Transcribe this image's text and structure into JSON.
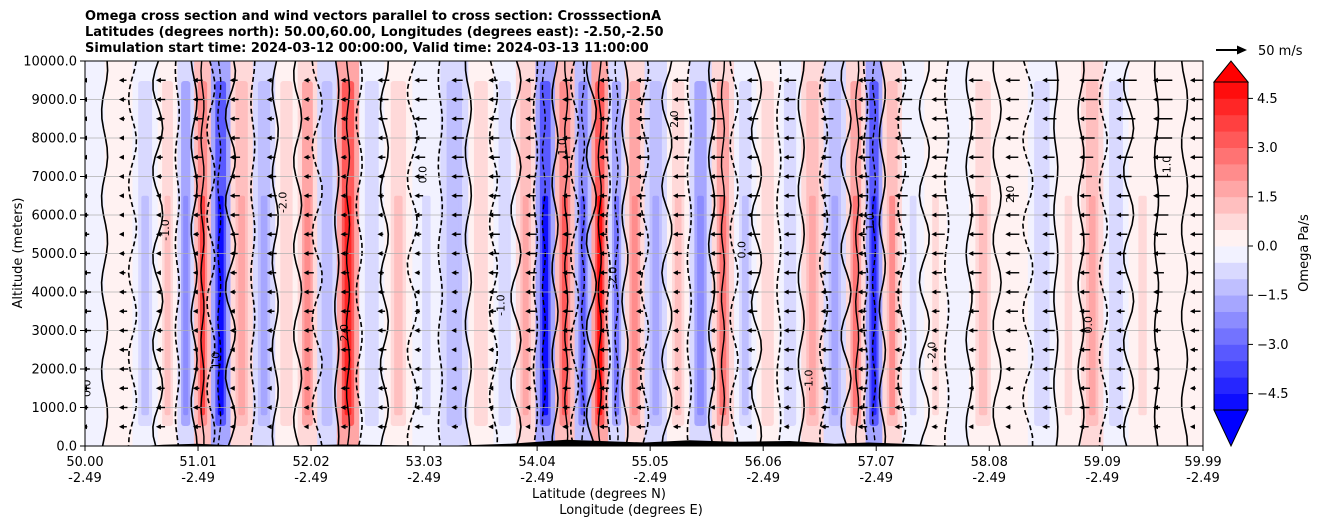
{
  "chart_data": {
    "type": "heatmap",
    "title_lines": [
      "Omega cross section and wind vectors parallel to cross section: CrosssectionA",
      "Latitudes (degrees north): 50.00,60.00, Longitudes (degrees east): -2.50,-2.50",
      "Simulation start time: 2024-03-12 00:00:00, Valid time: 2024-03-13 11:00:00"
    ],
    "xlabel_lines": [
      "Latitude (degrees N)",
      "Longitude (degrees E)"
    ],
    "ylabel": "Altitude (meters)",
    "x_ticks": [
      {
        "lat": "50.00",
        "lon": "-2.49"
      },
      {
        "lat": "51.01",
        "lon": "-2.49"
      },
      {
        "lat": "52.02",
        "lon": "-2.49"
      },
      {
        "lat": "53.03",
        "lon": "-2.49"
      },
      {
        "lat": "54.04",
        "lon": "-2.49"
      },
      {
        "lat": "55.05",
        "lon": "-2.49"
      },
      {
        "lat": "56.06",
        "lon": "-2.49"
      },
      {
        "lat": "57.07",
        "lon": "-2.49"
      },
      {
        "lat": "58.08",
        "lon": "-2.49"
      },
      {
        "lat": "59.09",
        "lon": "-2.49"
      },
      {
        "lat": "59.99",
        "lon": "-2.49"
      }
    ],
    "xlim": [
      50.0,
      59.99
    ],
    "y_ticks": [
      "0.0",
      "1000.0",
      "2000.0",
      "3000.0",
      "4000.0",
      "5000.0",
      "6000.0",
      "7000.0",
      "8000.0",
      "9000.0",
      "10000.0"
    ],
    "ylim": [
      0,
      10000
    ],
    "grid": "horizontal",
    "colorbar": {
      "label": "Omega Pa/s",
      "ticks": [
        "4.5",
        "3.0",
        "1.5",
        "0.0",
        "−1.5",
        "−3.0",
        "−4.5"
      ],
      "range": [
        -5.0,
        5.0
      ],
      "levels": 20,
      "extend": "both",
      "cmap": "bwr"
    },
    "quiver_key": {
      "label": "50 m/s",
      "value": 50
    },
    "omega_columns": [
      {
        "lat": 50.05,
        "v": -0.5
      },
      {
        "lat": 50.3,
        "v": 0.3
      },
      {
        "lat": 50.55,
        "v": -1.2
      },
      {
        "lat": 50.75,
        "v": 1.4
      },
      {
        "lat": 50.9,
        "v": -2.2
      },
      {
        "lat": 51.05,
        "v": 3.5
      },
      {
        "lat": 51.2,
        "v": -4.8
      },
      {
        "lat": 51.4,
        "v": 1.8
      },
      {
        "lat": 51.6,
        "v": -1.8
      },
      {
        "lat": 51.8,
        "v": 0.8
      },
      {
        "lat": 52.0,
        "v": 2.2
      },
      {
        "lat": 52.15,
        "v": -1.5
      },
      {
        "lat": 52.35,
        "v": 4.4
      },
      {
        "lat": 52.55,
        "v": -1.0
      },
      {
        "lat": 52.8,
        "v": 1.2
      },
      {
        "lat": 53.05,
        "v": -0.6
      },
      {
        "lat": 53.3,
        "v": -1.5
      },
      {
        "lat": 53.55,
        "v": 0.9
      },
      {
        "lat": 53.75,
        "v": -0.8
      },
      {
        "lat": 53.95,
        "v": 1.6
      },
      {
        "lat": 54.1,
        "v": -4.8
      },
      {
        "lat": 54.3,
        "v": 3.2
      },
      {
        "lat": 54.45,
        "v": -3.4
      },
      {
        "lat": 54.6,
        "v": 4.9
      },
      {
        "lat": 54.75,
        "v": -2.6
      },
      {
        "lat": 54.9,
        "v": 2.4
      },
      {
        "lat": 55.1,
        "v": -1.6
      },
      {
        "lat": 55.3,
        "v": 1.2
      },
      {
        "lat": 55.5,
        "v": -2.2
      },
      {
        "lat": 55.7,
        "v": 2.6
      },
      {
        "lat": 55.9,
        "v": -1.4
      },
      {
        "lat": 56.1,
        "v": 0.8
      },
      {
        "lat": 56.3,
        "v": -0.9
      },
      {
        "lat": 56.5,
        "v": 1.8
      },
      {
        "lat": 56.7,
        "v": -1.6
      },
      {
        "lat": 56.9,
        "v": 2.8
      },
      {
        "lat": 57.05,
        "v": -4.3
      },
      {
        "lat": 57.2,
        "v": 2.1
      },
      {
        "lat": 57.4,
        "v": -0.7
      },
      {
        "lat": 57.6,
        "v": 0.5
      },
      {
        "lat": 57.8,
        "v": -0.4
      },
      {
        "lat": 58.0,
        "v": 1.4
      },
      {
        "lat": 58.3,
        "v": 0.4
      },
      {
        "lat": 58.55,
        "v": -1.0
      },
      {
        "lat": 58.8,
        "v": 0.6
      },
      {
        "lat": 59.0,
        "v": 1.5
      },
      {
        "lat": 59.2,
        "v": -0.8
      },
      {
        "lat": 59.45,
        "v": 0.5
      },
      {
        "lat": 59.7,
        "v": 0.3
      },
      {
        "lat": 59.95,
        "v": 0.2
      }
    ],
    "contour_labels": [
      "0.0",
      "1.0",
      "2.0",
      "-1.0",
      "-2.0"
    ]
  }
}
